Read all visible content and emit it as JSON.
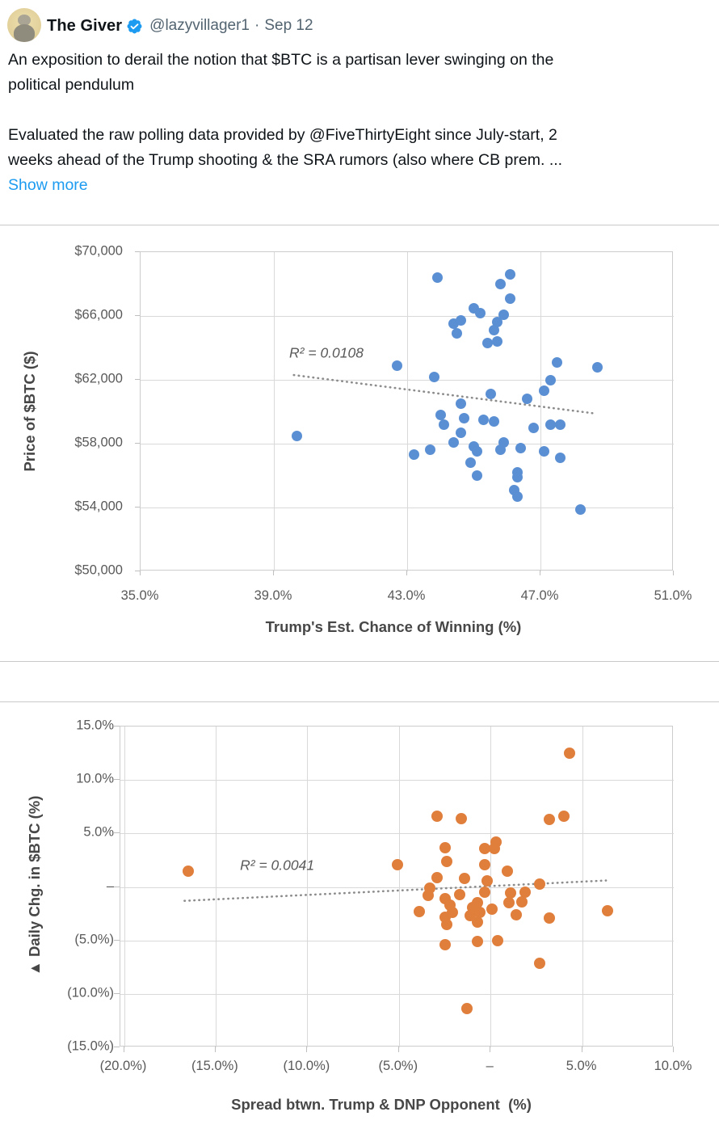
{
  "tweet": {
    "display_name": "The Giver",
    "handle": "@lazyvillager1",
    "separator": "·",
    "date": "Sep 12",
    "body_p1_lines": [
      "An exposition to derail the notion that $BTC is a partisan lever swinging on the",
      "political pendulum"
    ],
    "body_p2_lines": [
      "Evaluated the raw polling data provided by @FiveThirtyEight since July-start, 2",
      "weeks ahead of the Trump shooting & the SRA rumors (also where CB prem. ..."
    ],
    "show_more_label": "Show more"
  },
  "colors": {
    "accent_blue": "#1d9bf0",
    "scatter_blue": "#5a8fd3",
    "scatter_orange": "#e07e3c",
    "trendline_gray": "#8c8c8c",
    "axis_text": "#595959",
    "gridline": "#d9d9d9",
    "divider": "#c9c9c9"
  },
  "chart_data": [
    {
      "type": "scatter",
      "name": "btc-price-vs-trump-odds",
      "xlabel": "Trump's Est. Chance of Winning (%)",
      "ylabel": "Price of $BTC ($)",
      "xlim": [
        35,
        51
      ],
      "ylim": [
        50000,
        70000
      ],
      "grid": true,
      "legend": null,
      "point_color_key": "scatter_orange_or_blue: blue",
      "color_key": "scatter_blue",
      "x_gridlines": [
        39,
        43,
        47
      ],
      "y_gridlines": [
        54000,
        58000,
        62000,
        66000
      ],
      "x_ticks": [
        {
          "v": 35,
          "label": "35.0%"
        },
        {
          "v": 39,
          "label": "39.0%"
        },
        {
          "v": 43,
          "label": "43.0%"
        },
        {
          "v": 47,
          "label": "47.0%"
        },
        {
          "v": 51,
          "label": "51.0%"
        }
      ],
      "y_ticks": [
        {
          "v": 70000,
          "label": "$70,000"
        },
        {
          "v": 66000,
          "label": "$66,000"
        },
        {
          "v": 62000,
          "label": "$62,000"
        },
        {
          "v": 58000,
          "label": "$58,000"
        },
        {
          "v": 54000,
          "label": "$54,000"
        },
        {
          "v": 50000,
          "label": "$50,000"
        }
      ],
      "r2_label": "R² = 0.0108",
      "r2_pos": {
        "x": 40.6,
        "y": 63600
      },
      "trendline": {
        "x1": 39.6,
        "y1": 62300,
        "x2": 48.6,
        "y2": 59900
      },
      "points": [
        [
          39.7,
          58500
        ],
        [
          42.7,
          62900
        ],
        [
          43.2,
          57300
        ],
        [
          43.7,
          57600
        ],
        [
          43.8,
          62200
        ],
        [
          43.9,
          68400
        ],
        [
          44.0,
          59800
        ],
        [
          44.1,
          59200
        ],
        [
          44.4,
          65500
        ],
        [
          44.4,
          58100
        ],
        [
          44.5,
          64900
        ],
        [
          44.6,
          65700
        ],
        [
          44.6,
          60500
        ],
        [
          44.6,
          58700
        ],
        [
          44.7,
          59600
        ],
        [
          44.9,
          56800
        ],
        [
          45.0,
          66500
        ],
        [
          45.0,
          57800
        ],
        [
          45.1,
          57500
        ],
        [
          45.1,
          56000
        ],
        [
          45.2,
          66200
        ],
        [
          45.3,
          59500
        ],
        [
          45.4,
          64300
        ],
        [
          45.5,
          61100
        ],
        [
          45.6,
          65100
        ],
        [
          45.6,
          59400
        ],
        [
          45.7,
          65600
        ],
        [
          45.7,
          64400
        ],
        [
          45.8,
          68000
        ],
        [
          45.8,
          57600
        ],
        [
          45.9,
          66100
        ],
        [
          45.9,
          58100
        ],
        [
          46.1,
          68600
        ],
        [
          46.1,
          67100
        ],
        [
          46.2,
          55100
        ],
        [
          46.3,
          56200
        ],
        [
          46.3,
          55900
        ],
        [
          46.3,
          54700
        ],
        [
          46.4,
          57700
        ],
        [
          46.6,
          60800
        ],
        [
          46.8,
          59000
        ],
        [
          47.1,
          61300
        ],
        [
          47.1,
          57500
        ],
        [
          47.3,
          62000
        ],
        [
          47.3,
          59200
        ],
        [
          47.5,
          63100
        ],
        [
          47.6,
          59200
        ],
        [
          47.6,
          57100
        ],
        [
          48.2,
          53900
        ],
        [
          48.7,
          62800
        ]
      ]
    },
    {
      "type": "scatter",
      "name": "btc-daily-change-vs-spread",
      "xlabel": "Spread btwn. Trump & DNP Opponent  (%)",
      "ylabel": "▲ Daily Chg. in $BTC (%)",
      "xlim": [
        -20.2,
        10
      ],
      "ylim": [
        -15,
        15
      ],
      "grid": true,
      "legend": null,
      "color_key": "scatter_orange",
      "x_gridlines": [
        -20,
        -15,
        -10,
        -5,
        0,
        5
      ],
      "y_gridlines": [
        -10,
        -5,
        0,
        5,
        10
      ],
      "x_ticks": [
        {
          "v": -20,
          "label": "(20.0%)"
        },
        {
          "v": -15,
          "label": "(15.0%)"
        },
        {
          "v": -10,
          "label": "(10.0%)"
        },
        {
          "v": -5,
          "label": "(5.0%)"
        },
        {
          "v": 0,
          "label": "–"
        },
        {
          "v": 5,
          "label": "5.0%"
        },
        {
          "v": 10,
          "label": "10.0%"
        }
      ],
      "y_ticks": [
        {
          "v": 15,
          "label": "15.0%"
        },
        {
          "v": 10,
          "label": "10.0%"
        },
        {
          "v": 5,
          "label": "5.0%"
        },
        {
          "v": 0,
          "label": "–"
        },
        {
          "v": -5,
          "label": "(5.0%)"
        },
        {
          "v": -10,
          "label": "(10.0%)"
        },
        {
          "v": -15,
          "label": "(15.0%)"
        }
      ],
      "r2_label": "R² = 0.0041",
      "r2_pos": {
        "x": -11.6,
        "y": 1.9
      },
      "trendline": {
        "x1": -16.7,
        "y1": -1.3,
        "x2": 6.3,
        "y2": 0.6
      },
      "points": [
        [
          -16.5,
          1.5
        ],
        [
          -5.1,
          2.1
        ],
        [
          -3.9,
          -2.3
        ],
        [
          -3.4,
          -0.8
        ],
        [
          -3.3,
          -0.1
        ],
        [
          -2.9,
          6.6
        ],
        [
          -2.9,
          0.9
        ],
        [
          -2.5,
          3.7
        ],
        [
          -2.5,
          -1.1
        ],
        [
          -2.5,
          -2.8
        ],
        [
          -2.5,
          -5.4
        ],
        [
          -2.4,
          2.4
        ],
        [
          -2.4,
          -3.5
        ],
        [
          -2.2,
          -1.7
        ],
        [
          -2.1,
          -2.4
        ],
        [
          -1.7,
          -0.7
        ],
        [
          -1.6,
          6.4
        ],
        [
          -1.4,
          0.8
        ],
        [
          -1.3,
          -11.4
        ],
        [
          -1.1,
          -2.7
        ],
        [
          -1.0,
          -1.9
        ],
        [
          -0.7,
          -1.5
        ],
        [
          -0.7,
          -3.3
        ],
        [
          -0.7,
          -5.1
        ],
        [
          -0.6,
          -2.4
        ],
        [
          -0.3,
          3.6
        ],
        [
          -0.3,
          2.1
        ],
        [
          -0.3,
          -0.5
        ],
        [
          -0.2,
          0.6
        ],
        [
          0.1,
          -2.1
        ],
        [
          0.2,
          3.6
        ],
        [
          0.3,
          4.2
        ],
        [
          0.4,
          -5.0
        ],
        [
          0.9,
          1.5
        ],
        [
          1.0,
          -1.5
        ],
        [
          1.1,
          -0.6
        ],
        [
          1.4,
          -2.6
        ],
        [
          1.7,
          -1.4
        ],
        [
          1.9,
          -0.5
        ],
        [
          2.7,
          0.3
        ],
        [
          2.7,
          -7.1
        ],
        [
          3.2,
          6.3
        ],
        [
          3.2,
          -2.9
        ],
        [
          4.0,
          6.6
        ],
        [
          4.3,
          12.5
        ],
        [
          6.4,
          -2.2
        ]
      ]
    }
  ]
}
